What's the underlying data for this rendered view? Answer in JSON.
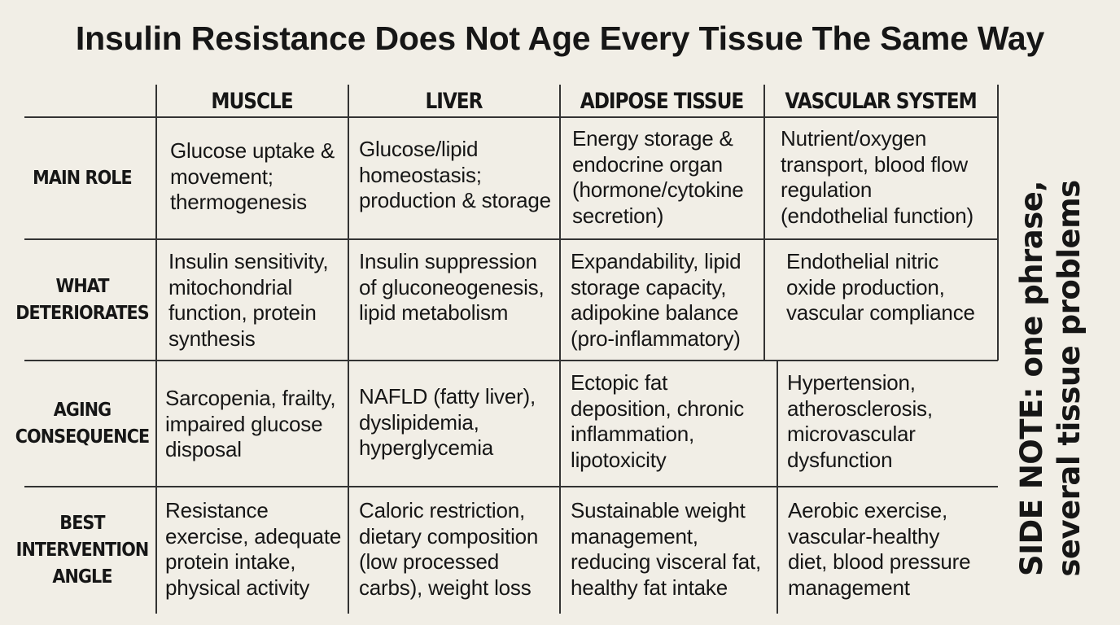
{
  "title": "Insulin Resistance Does Not Age Every Tissue The Same Way",
  "table": {
    "columns": [
      "MUSCLE",
      "LIVER",
      "ADIPOSE TISSUE",
      "VASCULAR SYSTEM"
    ],
    "rows": [
      {
        "label": "MAIN ROLE",
        "cells": [
          "Glucose uptake &\nmovement;\nthermogenesis",
          "Glucose/lipid\nhomeostasis;\nproduction & storage",
          "Energy storage &\nendocrine organ\n(hormone/cytokine\nsecretion)",
          "Nutrient/oxygen\ntransport, blood flow\nregulation\n(endothelial function)"
        ]
      },
      {
        "label": "WHAT\nDETERIORATES",
        "cells": [
          "Insulin sensitivity,\nmitochondrial\nfunction, protein\nsynthesis",
          "Insulin suppression\nof gluconeogenesis,\nlipid metabolism",
          "Expandability, lipid\nstorage capacity,\nadipokine balance\n(pro-inflammatory)",
          "Endothelial nitric\noxide production,\nvascular compliance"
        ]
      },
      {
        "label": "AGING\nCONSEQUENCE",
        "cells": [
          "Sarcopenia, frailty,\nimpaired glucose\ndisposal",
          "NAFLD (fatty liver),\ndyslipidemia,\nhyperglycemia",
          "Ectopic fat\ndeposition, chronic\ninflammation,\nlipotoxicity",
          "Hypertension,\natherosclerosis,\nmicrovascular\ndysfunction"
        ]
      },
      {
        "label": "BEST\nINTERVENTION\nANGLE",
        "cells": [
          "Resistance\nexercise, adequate\nprotein intake,\nphysical activity",
          "Caloric restriction,\ndietary composition\n(low processed\ncarbs), weight loss",
          "Sustainable weight\nmanagement,\nreducing visceral fat,\nhealthy fat intake",
          "Aerobic exercise,\nvascular-healthy\ndiet, blood pressure\nmanagement"
        ]
      }
    ]
  },
  "side_note": "SIDE NOTE: one phrase,\nseveral tissue problems"
}
